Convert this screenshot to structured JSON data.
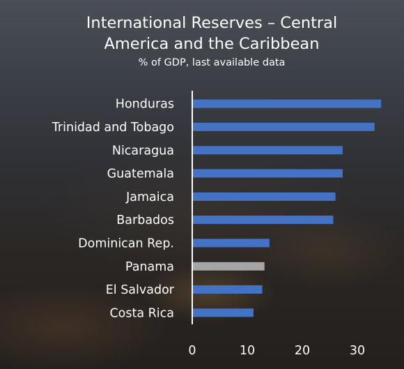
{
  "chart_data": {
    "type": "bar",
    "orientation": "horizontal",
    "title_lines": [
      "International Reserves – Central",
      "America and the Caribbean"
    ],
    "subtitle": "% of GDP, last available data",
    "categories": [
      "Honduras",
      "Trinidad and Tobago",
      "Nicaragua",
      "Guatemala",
      "Jamaica",
      "Barbados",
      "Dominican Rep.",
      "Panama",
      "El Salvador",
      "Costa Rica"
    ],
    "values": [
      34.2,
      33.0,
      27.2,
      27.2,
      25.9,
      25.5,
      13.9,
      13.0,
      12.6,
      11.0
    ],
    "bar_colors": [
      "#4472c4",
      "#4472c4",
      "#4472c4",
      "#4472c4",
      "#4472c4",
      "#4472c4",
      "#4472c4",
      "#a5a5a5",
      "#4472c4",
      "#4472c4"
    ],
    "xticks": [
      0,
      10,
      20,
      30
    ],
    "xlim": [
      0,
      35
    ],
    "grid": false,
    "legend": "none"
  }
}
